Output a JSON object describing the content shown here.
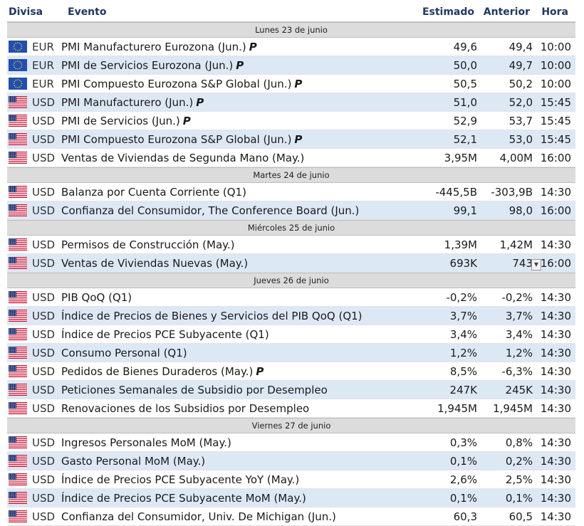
{
  "header": {
    "divisa": "Divisa",
    "evento": "Evento",
    "estimado": "Estimado",
    "anterior": "Anterior",
    "hora": "Hora"
  },
  "colors": {
    "header_text": "#1f3864",
    "day_band": "#dcdcdc",
    "row_alt": "#dde8f5"
  },
  "days": [
    {
      "label": "Lunes 23 de junio",
      "events": [
        {
          "flag": "eu-flag-icon",
          "currency": "EUR",
          "event": "PMI Manufacturero Eurozona (Jun.)",
          "p": "P",
          "est": "49,6",
          "prev": "49,4",
          "time": "10:00"
        },
        {
          "flag": "eu-flag-icon",
          "currency": "EUR",
          "event": "PMI de Servicios Eurozona (Jun.)",
          "p": "P",
          "est": "50,0",
          "prev": "49,7",
          "time": "10:00"
        },
        {
          "flag": "eu-flag-icon",
          "currency": "EUR",
          "event": "PMI Compuesto Eurozona S&P Global (Jun.)",
          "p": "P",
          "est": "50,5",
          "prev": "50,2",
          "time": "10:00"
        },
        {
          "flag": "us-flag-icon",
          "currency": "USD",
          "event": "PMI Manufacturero (Jun.)",
          "p": "P",
          "est": "51,0",
          "prev": "52,0",
          "time": "15:45"
        },
        {
          "flag": "us-flag-icon",
          "currency": "USD",
          "event": "PMI de Servicios (Jun.)",
          "p": "P",
          "est": "52,9",
          "prev": "53,7",
          "time": "15:45"
        },
        {
          "flag": "us-flag-icon",
          "currency": "USD",
          "event": "PMI Compuesto Eurozona S&P Global (Jun.)",
          "p": "P",
          "est": "52,1",
          "prev": "53,0",
          "time": "15:45"
        },
        {
          "flag": "us-flag-icon",
          "currency": "USD",
          "event": "Ventas de Viviendas de Segunda Mano (May.)",
          "p": "",
          "est": "3,95M",
          "prev": "4,00M",
          "time": "16:00"
        }
      ]
    },
    {
      "label": "Martes 24 de junio",
      "events": [
        {
          "flag": "us-flag-icon",
          "currency": "USD",
          "event": "Balanza por Cuenta Corriente (Q1)",
          "p": "",
          "est": "-445,5B",
          "prev": "-303,9B",
          "time": "14:30"
        },
        {
          "flag": "us-flag-icon",
          "currency": "USD",
          "event": "Confianza del Consumidor, The Conference Board (Jun.)",
          "p": "",
          "est": "99,1",
          "prev": "98,0",
          "time": "16:00"
        }
      ]
    },
    {
      "label": "Miércoles 25 de junio",
      "events": [
        {
          "flag": "us-flag-icon",
          "currency": "USD",
          "event": "Permisos de Construcción (May.)",
          "p": "",
          "est": "1,39M",
          "prev": "1,42M",
          "time": "14:30"
        },
        {
          "flag": "us-flag-icon",
          "currency": "USD",
          "event": "Ventas de Viviendas Nuevas (May.)",
          "p": "",
          "est": "693K",
          "prev": "743",
          "time": "16:00",
          "dropdown": true
        }
      ]
    },
    {
      "label": "Jueves 26 de junio",
      "events": [
        {
          "flag": "us-flag-icon",
          "currency": "USD",
          "event": "PIB QoQ (Q1)",
          "p": "",
          "est": "-0,2%",
          "prev": "-0,2%",
          "time": "14:30"
        },
        {
          "flag": "us-flag-icon",
          "currency": "USD",
          "event": "Índice de Precios de Bienes y Servicios del PIB QoQ (Q1)",
          "p": "",
          "est": "3,7%",
          "prev": "3,7%",
          "time": "14:30"
        },
        {
          "flag": "us-flag-icon",
          "currency": "USD",
          "event": "Índice de Precios PCE Subyacente (Q1)",
          "p": "",
          "est": "3,4%",
          "prev": "3,4%",
          "time": "14:30"
        },
        {
          "flag": "us-flag-icon",
          "currency": "USD",
          "event": "Consumo Personal (Q1)",
          "p": "",
          "est": "1,2%",
          "prev": "1,2%",
          "time": "14:30"
        },
        {
          "flag": "us-flag-icon",
          "currency": "USD",
          "event": "Pedidos de Bienes Duraderos (May.)",
          "p": "P",
          "est": "8,5%",
          "prev": "-6,3%",
          "time": "14:30"
        },
        {
          "flag": "us-flag-icon",
          "currency": "USD",
          "event": "Peticiones Semanales de Subsidio por Desempleo",
          "p": "",
          "est": "247K",
          "prev": "245K",
          "time": "14:30"
        },
        {
          "flag": "us-flag-icon",
          "currency": "USD",
          "event": "Renovaciones de los Subsidios por Desempleo",
          "p": "",
          "est": "1,945M",
          "prev": "1,945M",
          "time": "14:30"
        }
      ]
    },
    {
      "label": "Viernes 27 de junio",
      "events": [
        {
          "flag": "us-flag-icon",
          "currency": "USD",
          "event": "Ingresos Personales MoM (May.)",
          "p": "",
          "est": "0,3%",
          "prev": "0,8%",
          "time": "14:30"
        },
        {
          "flag": "us-flag-icon",
          "currency": "USD",
          "event": "Gasto Personal MoM (May.)",
          "p": "",
          "est": "0,1%",
          "prev": "0,2%",
          "time": "14:30"
        },
        {
          "flag": "us-flag-icon",
          "currency": "USD",
          "event": "Índice de Precios PCE Subyacente YoY (May.)",
          "p": "",
          "est": "2,6%",
          "prev": "2,5%",
          "time": "14:30"
        },
        {
          "flag": "us-flag-icon",
          "currency": "USD",
          "event": "Índice de Precios PCE Subyacente MoM (May.)",
          "p": "",
          "est": "0,1%",
          "prev": "0,1%",
          "time": "14:30"
        },
        {
          "flag": "us-flag-icon",
          "currency": "USD",
          "event": "Confianza del Consumidor, Univ. De Michigan (Jun.)",
          "p": "",
          "est": "60,3",
          "prev": "60,5",
          "time": "14:30"
        }
      ]
    }
  ]
}
